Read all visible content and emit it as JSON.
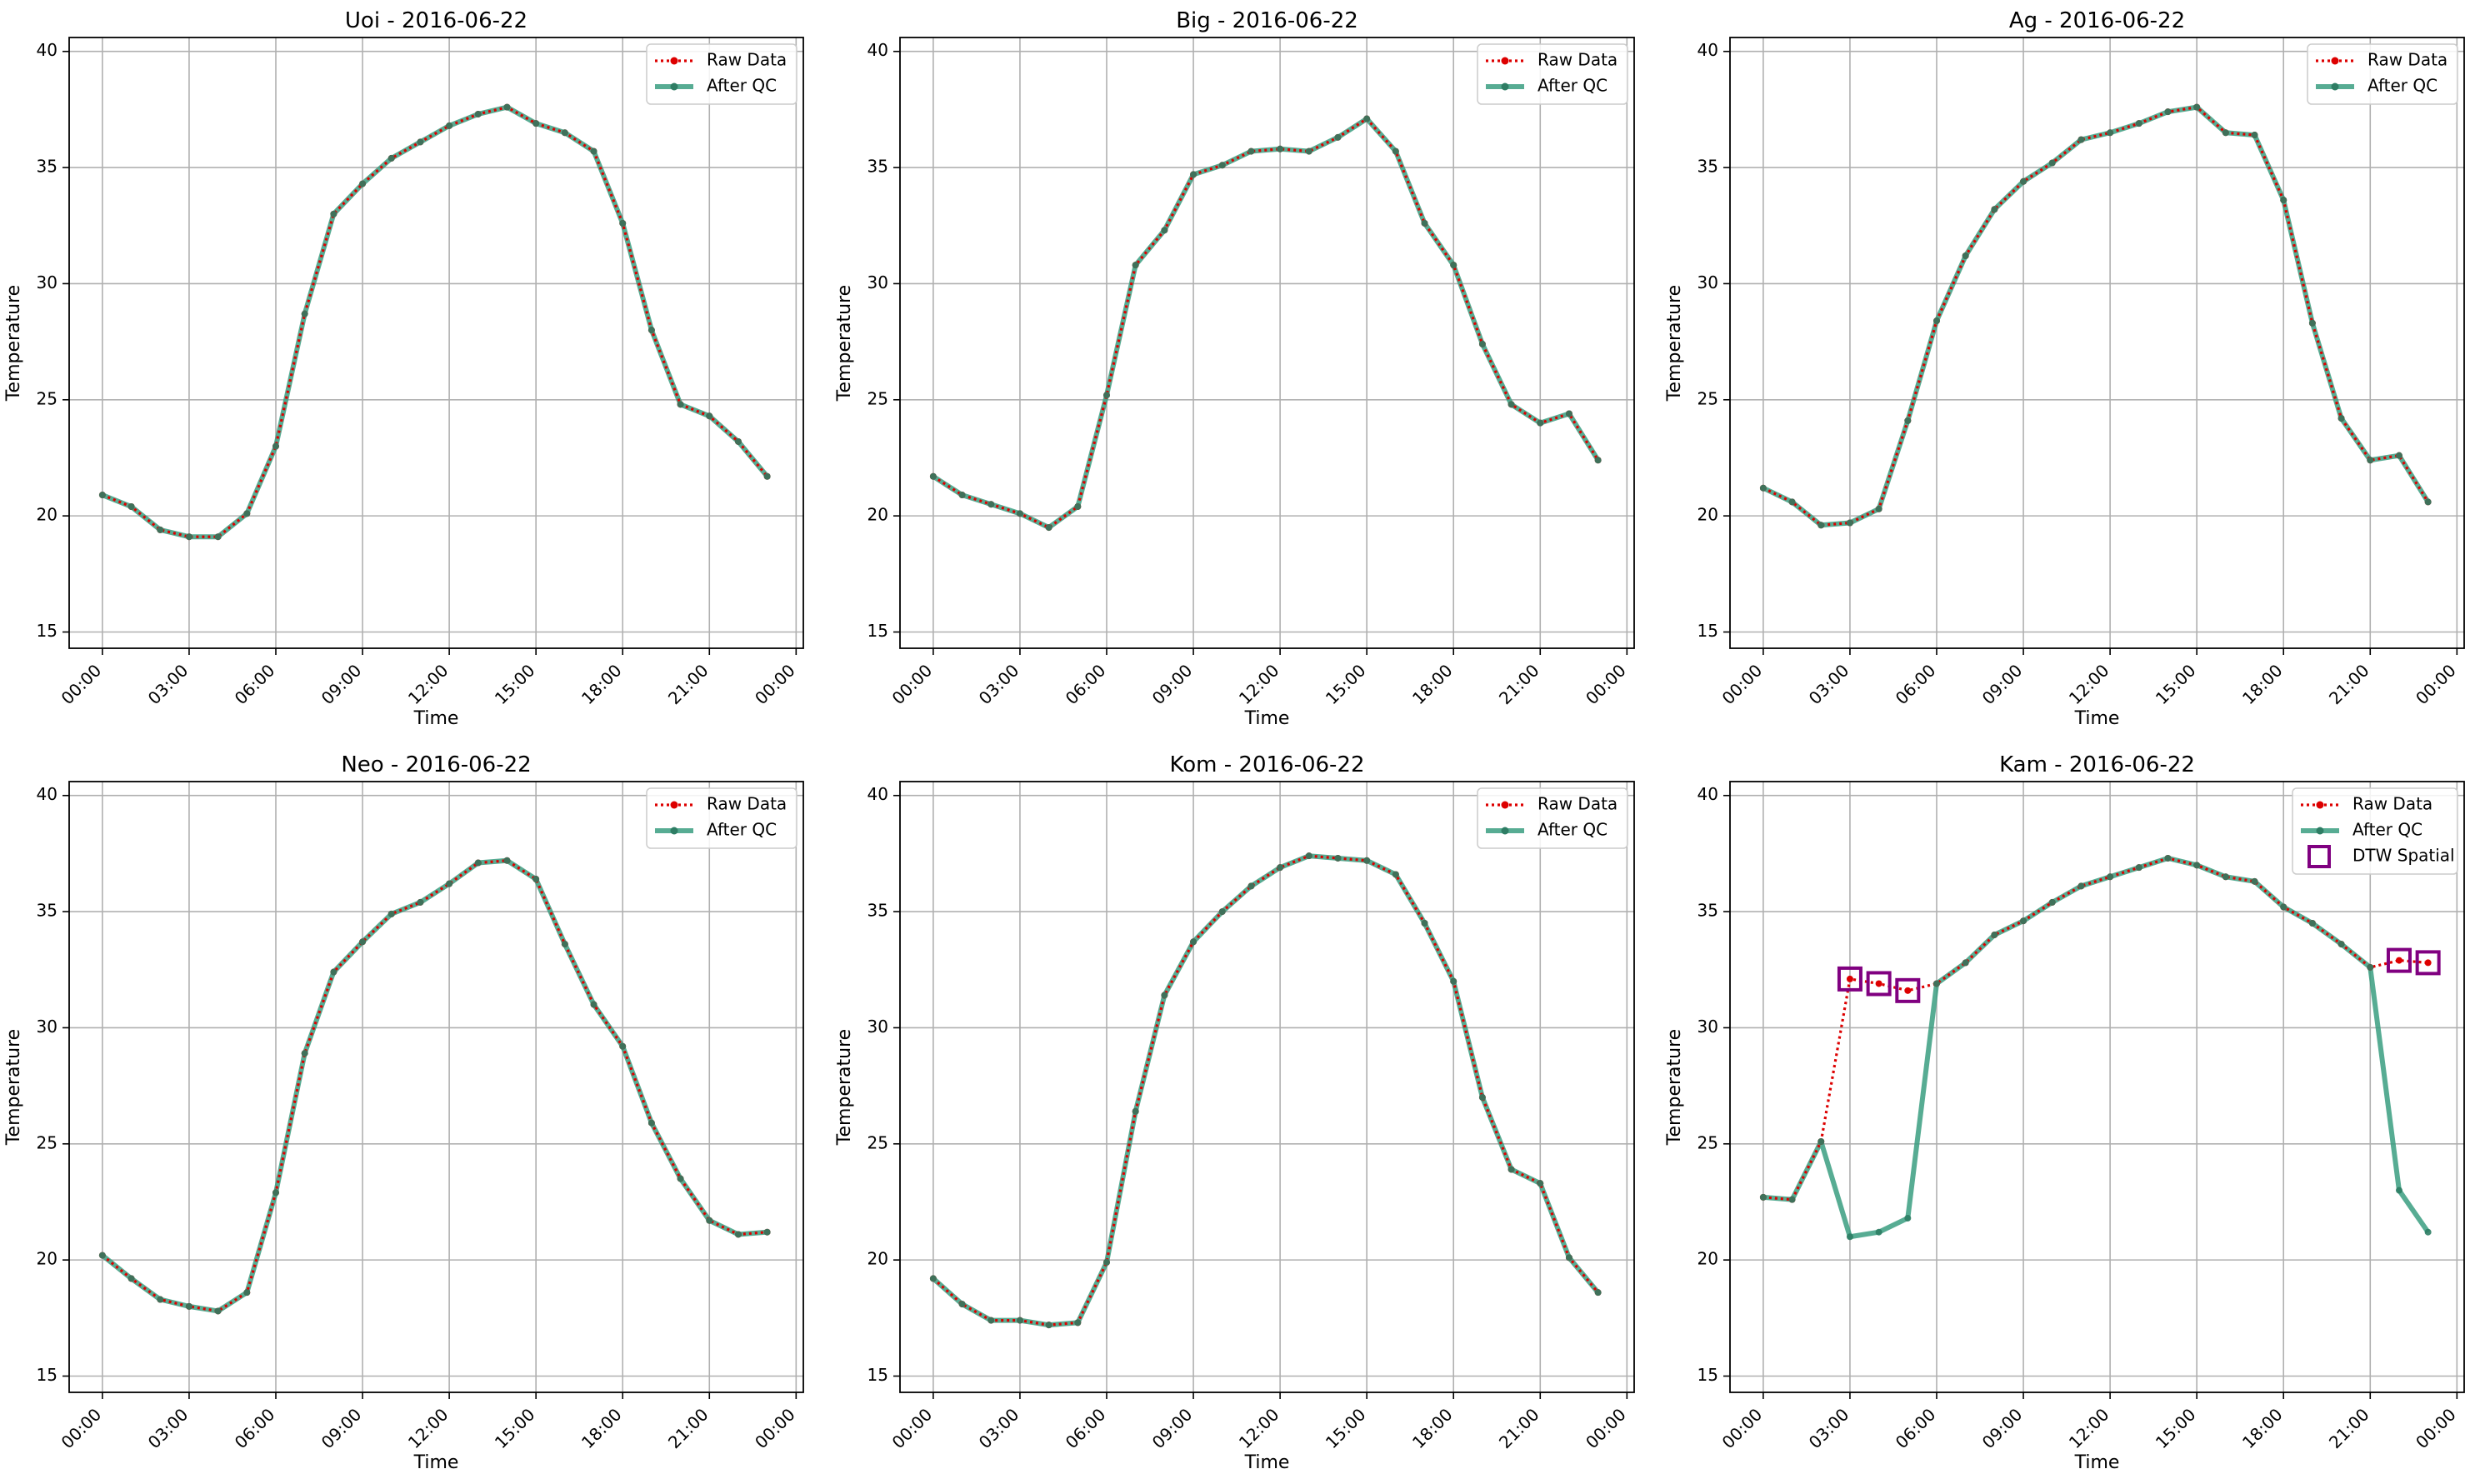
{
  "chart_data": [
    {
      "type": "line",
      "title": "Uoi - 2016-06-22",
      "xlabel": "Time",
      "ylabel": "Temperature",
      "x_ticks": [
        "00:00",
        "03:00",
        "06:00",
        "09:00",
        "12:00",
        "15:00",
        "18:00",
        "21:00",
        "00:00"
      ],
      "y_ticks": [
        "15",
        "20",
        "25",
        "30",
        "35",
        "40"
      ],
      "ylim": [
        14.3,
        40.6
      ],
      "x_hours": [
        0,
        1,
        2,
        3,
        4,
        5,
        6,
        7,
        8,
        9,
        10,
        11,
        12,
        13,
        14,
        15,
        16,
        17,
        18,
        19,
        20,
        21,
        22,
        23
      ],
      "series": [
        {
          "name": "Raw Data",
          "values": [
            20.9,
            20.4,
            19.4,
            19.1,
            19.1,
            20.1,
            23.0,
            28.7,
            33.0,
            34.3,
            35.4,
            36.1,
            36.8,
            37.3,
            37.6,
            36.9,
            36.5,
            35.7,
            32.6,
            28.0,
            24.8,
            24.3,
            23.2,
            21.7
          ]
        },
        {
          "name": "After QC",
          "values": [
            20.9,
            20.4,
            19.4,
            19.1,
            19.1,
            20.1,
            23.0,
            28.7,
            33.0,
            34.3,
            35.4,
            36.1,
            36.8,
            37.3,
            37.6,
            36.9,
            36.5,
            35.7,
            32.6,
            28.0,
            24.8,
            24.3,
            23.2,
            21.7
          ]
        }
      ],
      "legend_loc": "upper right",
      "grid": true,
      "colors": {
        "raw": "#dd0000",
        "qc": "#3a9e80",
        "dtw": "#800080"
      }
    },
    {
      "type": "line",
      "title": "Big - 2016-06-22",
      "xlabel": "Time",
      "ylabel": "Temperature",
      "x_ticks": [
        "00:00",
        "03:00",
        "06:00",
        "09:00",
        "12:00",
        "15:00",
        "18:00",
        "21:00",
        "00:00"
      ],
      "y_ticks": [
        "15",
        "20",
        "25",
        "30",
        "35",
        "40"
      ],
      "ylim": [
        14.3,
        40.6
      ],
      "x_hours": [
        0,
        1,
        2,
        3,
        4,
        5,
        6,
        7,
        8,
        9,
        10,
        11,
        12,
        13,
        14,
        15,
        16,
        17,
        18,
        19,
        20,
        21,
        22,
        23
      ],
      "series": [
        {
          "name": "Raw Data",
          "values": [
            21.7,
            20.9,
            20.5,
            20.1,
            19.5,
            20.4,
            25.2,
            30.8,
            32.3,
            34.7,
            35.1,
            35.7,
            35.8,
            35.7,
            36.3,
            37.1,
            35.7,
            32.6,
            30.8,
            27.4,
            24.8,
            24.0,
            24.4,
            22.4
          ]
        },
        {
          "name": "After QC",
          "values": [
            21.7,
            20.9,
            20.5,
            20.1,
            19.5,
            20.4,
            25.2,
            30.8,
            32.3,
            34.7,
            35.1,
            35.7,
            35.8,
            35.7,
            36.3,
            37.1,
            35.7,
            32.6,
            30.8,
            27.4,
            24.8,
            24.0,
            24.4,
            22.4
          ]
        }
      ],
      "legend_loc": "upper right",
      "grid": true,
      "colors": {
        "raw": "#dd0000",
        "qc": "#3a9e80",
        "dtw": "#800080"
      }
    },
    {
      "type": "line",
      "title": "Ag - 2016-06-22",
      "xlabel": "Time",
      "ylabel": "Temperature",
      "x_ticks": [
        "00:00",
        "03:00",
        "06:00",
        "09:00",
        "12:00",
        "15:00",
        "18:00",
        "21:00",
        "00:00"
      ],
      "y_ticks": [
        "15",
        "20",
        "25",
        "30",
        "35",
        "40"
      ],
      "ylim": [
        14.3,
        40.6
      ],
      "x_hours": [
        0,
        1,
        2,
        3,
        4,
        5,
        6,
        7,
        8,
        9,
        10,
        11,
        12,
        13,
        14,
        15,
        16,
        17,
        18,
        19,
        20,
        21,
        22,
        23
      ],
      "series": [
        {
          "name": "Raw Data",
          "values": [
            21.2,
            20.6,
            19.6,
            19.7,
            20.3,
            24.1,
            28.4,
            31.2,
            33.2,
            34.4,
            35.2,
            36.2,
            36.5,
            36.9,
            37.4,
            37.6,
            36.5,
            36.4,
            33.6,
            28.3,
            24.2,
            22.4,
            22.6,
            20.6
          ]
        },
        {
          "name": "After QC",
          "values": [
            21.2,
            20.6,
            19.6,
            19.7,
            20.3,
            24.1,
            28.4,
            31.2,
            33.2,
            34.4,
            35.2,
            36.2,
            36.5,
            36.9,
            37.4,
            37.6,
            36.5,
            36.4,
            33.6,
            28.3,
            24.2,
            22.4,
            22.6,
            20.6
          ]
        }
      ],
      "legend_loc": "upper right",
      "grid": true,
      "colors": {
        "raw": "#dd0000",
        "qc": "#3a9e80",
        "dtw": "#800080"
      }
    },
    {
      "type": "line",
      "title": "Neo - 2016-06-22",
      "xlabel": "Time",
      "ylabel": "Temperature",
      "x_ticks": [
        "00:00",
        "03:00",
        "06:00",
        "09:00",
        "12:00",
        "15:00",
        "18:00",
        "21:00",
        "00:00"
      ],
      "y_ticks": [
        "15",
        "20",
        "25",
        "30",
        "35",
        "40"
      ],
      "ylim": [
        14.3,
        40.6
      ],
      "x_hours": [
        0,
        1,
        2,
        3,
        4,
        5,
        6,
        7,
        8,
        9,
        10,
        11,
        12,
        13,
        14,
        15,
        16,
        17,
        18,
        19,
        20,
        21,
        22,
        23
      ],
      "series": [
        {
          "name": "Raw Data",
          "values": [
            20.2,
            19.2,
            18.3,
            18.0,
            17.8,
            18.6,
            22.9,
            28.9,
            32.4,
            33.7,
            34.9,
            35.4,
            36.2,
            37.1,
            37.2,
            36.4,
            33.6,
            31.0,
            29.2,
            25.9,
            23.5,
            21.7,
            21.1,
            21.2
          ]
        },
        {
          "name": "After QC",
          "values": [
            20.2,
            19.2,
            18.3,
            18.0,
            17.8,
            18.6,
            22.9,
            28.9,
            32.4,
            33.7,
            34.9,
            35.4,
            36.2,
            37.1,
            37.2,
            36.4,
            33.6,
            31.0,
            29.2,
            25.9,
            23.5,
            21.7,
            21.1,
            21.2
          ]
        }
      ],
      "legend_loc": "upper right",
      "grid": true,
      "colors": {
        "raw": "#dd0000",
        "qc": "#3a9e80",
        "dtw": "#800080"
      }
    },
    {
      "type": "line",
      "title": "Kom - 2016-06-22",
      "xlabel": "Time",
      "ylabel": "Temperature",
      "x_ticks": [
        "00:00",
        "03:00",
        "06:00",
        "09:00",
        "12:00",
        "15:00",
        "18:00",
        "21:00",
        "00:00"
      ],
      "y_ticks": [
        "15",
        "20",
        "25",
        "30",
        "35",
        "40"
      ],
      "ylim": [
        14.3,
        40.6
      ],
      "x_hours": [
        0,
        1,
        2,
        3,
        4,
        5,
        6,
        7,
        8,
        9,
        10,
        11,
        12,
        13,
        14,
        15,
        16,
        17,
        18,
        19,
        20,
        21,
        22,
        23
      ],
      "series": [
        {
          "name": "Raw Data",
          "values": [
            19.2,
            18.1,
            17.4,
            17.4,
            17.2,
            17.3,
            19.9,
            26.4,
            31.4,
            33.7,
            35.0,
            36.1,
            36.9,
            37.4,
            37.3,
            37.2,
            36.6,
            34.5,
            32.0,
            27.0,
            23.9,
            23.3,
            20.1,
            18.6
          ]
        },
        {
          "name": "After QC",
          "values": [
            19.2,
            18.1,
            17.4,
            17.4,
            17.2,
            17.3,
            19.9,
            26.4,
            31.4,
            33.7,
            35.0,
            36.1,
            36.9,
            37.4,
            37.3,
            37.2,
            36.6,
            34.5,
            32.0,
            27.0,
            23.9,
            23.3,
            20.1,
            18.6
          ]
        }
      ],
      "legend_loc": "upper right",
      "grid": true,
      "colors": {
        "raw": "#dd0000",
        "qc": "#3a9e80",
        "dtw": "#800080"
      }
    },
    {
      "type": "line",
      "title": "Kam - 2016-06-22",
      "xlabel": "Time",
      "ylabel": "Temperature",
      "x_ticks": [
        "00:00",
        "03:00",
        "06:00",
        "09:00",
        "12:00",
        "15:00",
        "18:00",
        "21:00",
        "00:00"
      ],
      "y_ticks": [
        "15",
        "20",
        "25",
        "30",
        "35",
        "40"
      ],
      "ylim": [
        14.3,
        40.6
      ],
      "x_hours": [
        0,
        1,
        2,
        3,
        4,
        5,
        6,
        7,
        8,
        9,
        10,
        11,
        12,
        13,
        14,
        15,
        16,
        17,
        18,
        19,
        20,
        21,
        22,
        23
      ],
      "series": [
        {
          "name": "Raw Data",
          "values": [
            22.7,
            22.6,
            25.1,
            32.1,
            31.9,
            31.6,
            31.9,
            32.8,
            34.0,
            34.6,
            35.4,
            36.1,
            36.5,
            36.9,
            37.3,
            37.0,
            36.5,
            36.3,
            35.2,
            34.5,
            33.6,
            32.6,
            32.9,
            32.8
          ]
        },
        {
          "name": "After QC",
          "values": [
            22.7,
            22.6,
            25.1,
            21.0,
            21.2,
            21.8,
            31.9,
            32.8,
            34.0,
            34.6,
            35.4,
            36.1,
            36.5,
            36.9,
            37.3,
            37.0,
            36.5,
            36.3,
            35.2,
            34.5,
            33.6,
            32.6,
            23.0,
            21.2
          ]
        },
        {
          "name": "DTW Spatial",
          "x_hours": [
            3,
            4,
            5,
            22,
            23
          ],
          "values": [
            32.1,
            31.9,
            31.6,
            32.9,
            32.8
          ]
        }
      ],
      "legend_loc": "upper right",
      "grid": true,
      "colors": {
        "raw": "#dd0000",
        "qc": "#3a9e80",
        "dtw": "#800080"
      }
    }
  ]
}
